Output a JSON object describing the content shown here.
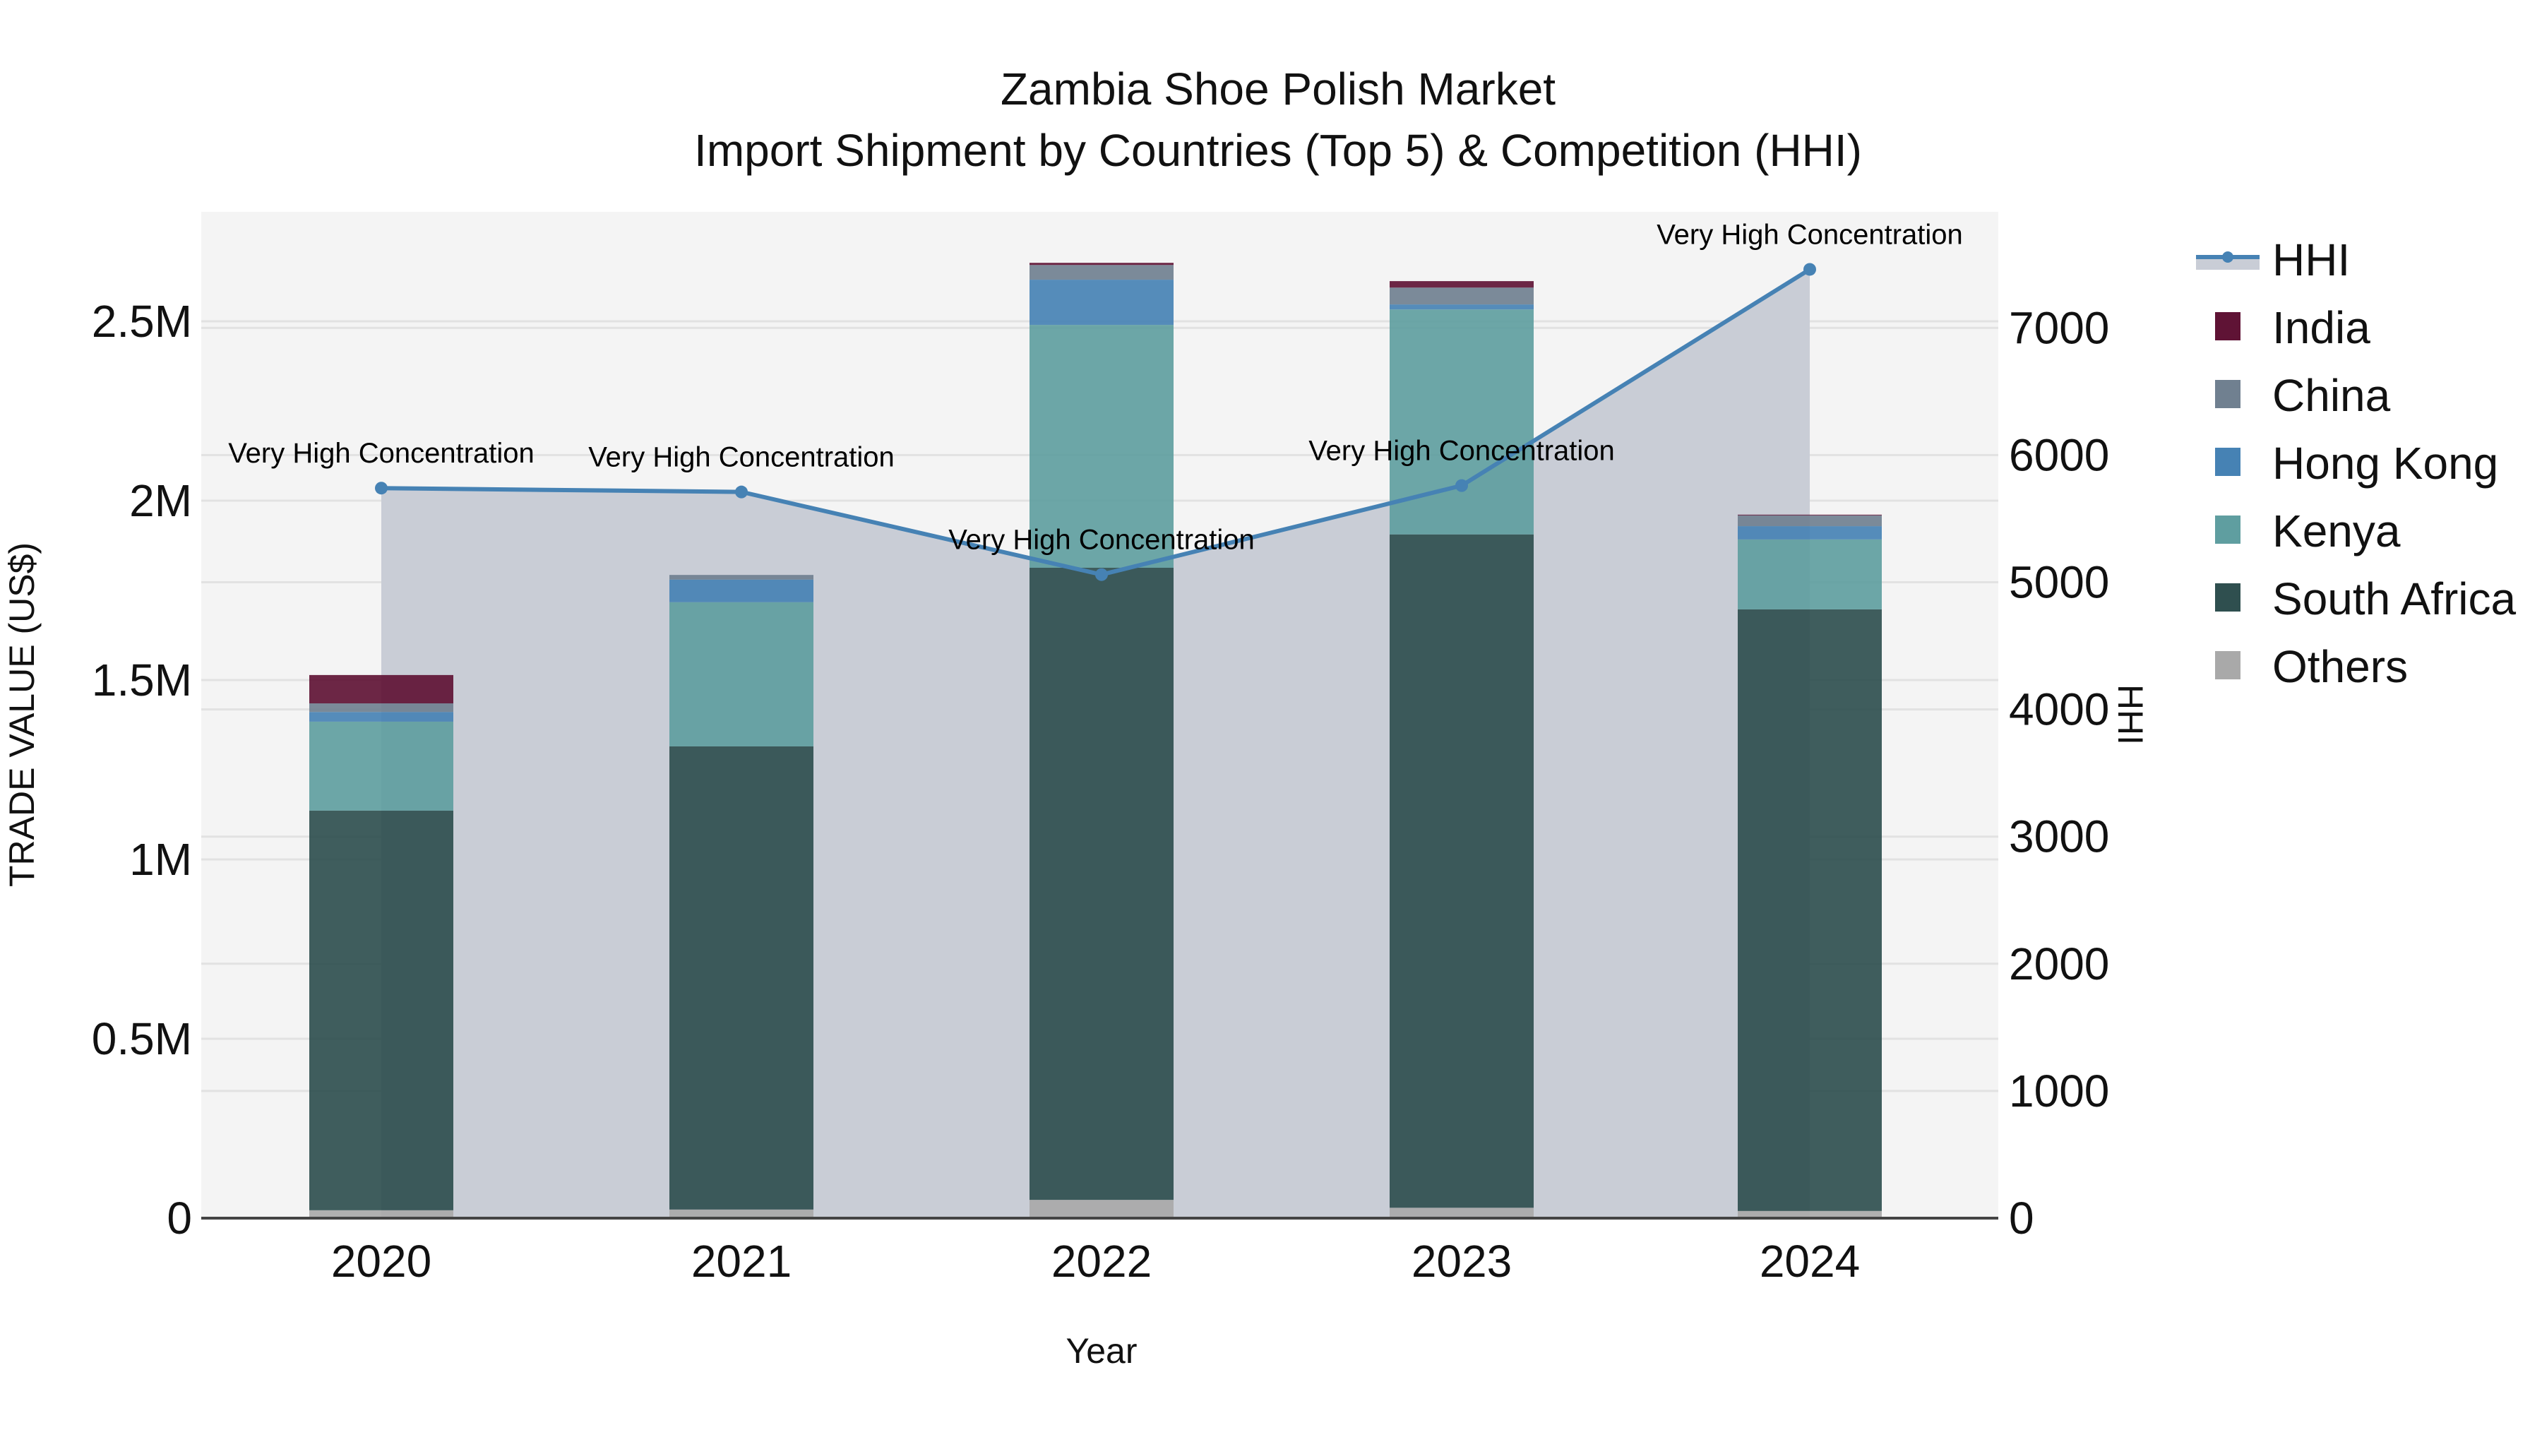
{
  "chart_data": {
    "type": "bar",
    "title": "Zambia Shoe Polish Market",
    "subtitle": "Import Shipment by Countries (Top 5) & Competition (HHI)",
    "xlabel": "Year",
    "ylabel": "TRADE VALUE (US$)",
    "y2label": "HHI",
    "categories": [
      "2020",
      "2021",
      "2022",
      "2023",
      "2024"
    ],
    "ylim": [
      0,
      2820000
    ],
    "y2lim": [
      0,
      7830
    ],
    "yticks": [
      {
        "v": 0,
        "label": "0"
      },
      {
        "v": 500000,
        "label": "0.5M"
      },
      {
        "v": 1000000,
        "label": "1M"
      },
      {
        "v": 1500000,
        "label": "1.5M"
      },
      {
        "v": 2000000,
        "label": "2M"
      },
      {
        "v": 2500000,
        "label": "2.5M"
      }
    ],
    "y2ticks": [
      0,
      1000,
      2000,
      3000,
      4000,
      5000,
      6000,
      7000
    ],
    "grid": true,
    "legend_position": "right",
    "series": [
      {
        "name": "Others",
        "color": "#A9A9A9",
        "values": [
          22000,
          24000,
          51000,
          29000,
          20000
        ]
      },
      {
        "name": "South Africa",
        "color": "#2F4F4F",
        "values": [
          1114000,
          1291000,
          1762000,
          1877000,
          1677000
        ]
      },
      {
        "name": "Kenya",
        "color": "#5F9EA0",
        "values": [
          248000,
          402000,
          677000,
          627000,
          195000
        ]
      },
      {
        "name": "Hong Kong",
        "color": "#4682B4",
        "values": [
          27000,
          63000,
          126000,
          14000,
          37000
        ]
      },
      {
        "name": "China",
        "color": "#708090",
        "values": [
          24000,
          13000,
          41000,
          47000,
          30000
        ]
      },
      {
        "name": "India",
        "color": "#5F1335",
        "values": [
          79000,
          0,
          6000,
          18000,
          2000
        ]
      }
    ],
    "hhi": {
      "name": "HHI",
      "color": "#4682B4",
      "fill": "rgba(176,184,199,0.6)",
      "values": [
        5740,
        5710,
        5060,
        5760,
        7460
      ],
      "labels": [
        "Very High Concentration",
        "Very High Concentration",
        "Very High Concentration",
        "Very High Concentration",
        "Very High Concentration"
      ]
    }
  },
  "legend": [
    {
      "name": "HHI",
      "type": "line"
    },
    {
      "name": "India",
      "color": "#5F1335"
    },
    {
      "name": "China",
      "color": "#708090"
    },
    {
      "name": "Hong Kong",
      "color": "#4682B4"
    },
    {
      "name": "Kenya",
      "color": "#5F9EA0"
    },
    {
      "name": "South Africa",
      "color": "#2F4F4F"
    },
    {
      "name": "Others",
      "color": "#A9A9A9"
    }
  ]
}
